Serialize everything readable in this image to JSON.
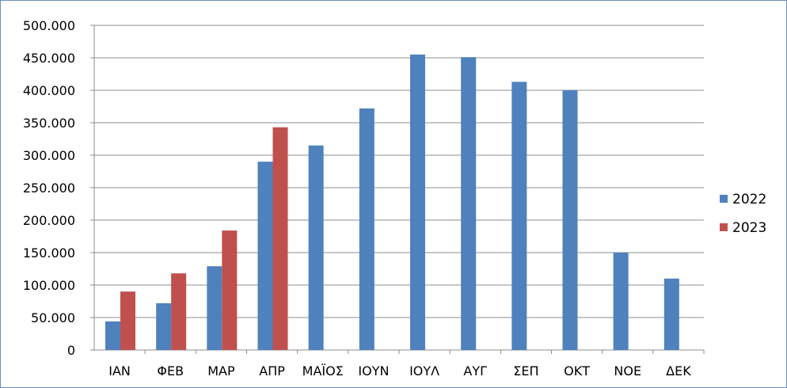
{
  "chart_data": {
    "type": "bar",
    "title": "",
    "xlabel": "",
    "ylabel": "",
    "categories": [
      "ΙΑΝ",
      "ΦΕΒ",
      "ΜΑΡ",
      "ΑΠΡ",
      "ΜΑΪΟΣ",
      "ΙΟΥΝ",
      "ΙΟΥΛ",
      "ΑΥΓ",
      "ΣΕΠ",
      "ΟΚΤ",
      "ΝΟΕ",
      "ΔΕΚ"
    ],
    "series": [
      {
        "name": "2022",
        "color": "#4f81bd",
        "values": [
          44000,
          72000,
          129000,
          290000,
          315000,
          372000,
          455000,
          451000,
          413000,
          400000,
          150000,
          110000
        ]
      },
      {
        "name": "2023",
        "color": "#c0504d",
        "values": [
          90000,
          118000,
          184000,
          343000,
          null,
          null,
          null,
          null,
          null,
          null,
          null,
          null
        ]
      }
    ],
    "ylim": [
      0,
      500000
    ],
    "yticks": [
      0,
      50000,
      100000,
      150000,
      200000,
      250000,
      300000,
      350000,
      400000,
      450000,
      500000
    ],
    "ytick_labels": [
      "0",
      "50.000",
      "100.000",
      "150.000",
      "200.000",
      "250.000",
      "300.000",
      "350.000",
      "400.000",
      "450.000",
      "500.000"
    ],
    "grid": true,
    "legend_position": "right"
  }
}
